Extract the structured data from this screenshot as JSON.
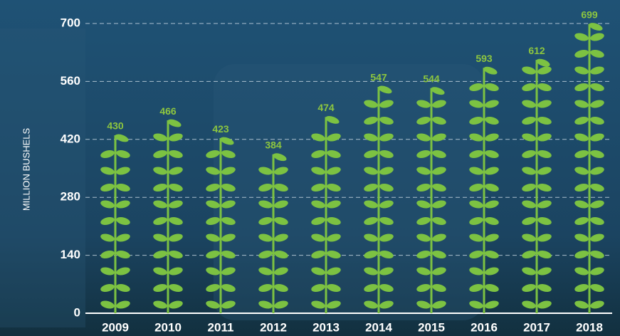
{
  "chart_data": {
    "type": "pictograph-bar",
    "y_axis_label": "MILLION BUSHELS",
    "categories": [
      "2009",
      "2010",
      "2011",
      "2012",
      "2013",
      "2014",
      "2015",
      "2016",
      "2017",
      "2018"
    ],
    "values": [
      430,
      466,
      423,
      384,
      474,
      547,
      544,
      593,
      612,
      699
    ],
    "color": "#7cc242",
    "ylim": [
      0,
      700
    ],
    "yticks": [
      0,
      140,
      280,
      420,
      560,
      700
    ],
    "grid": true
  }
}
